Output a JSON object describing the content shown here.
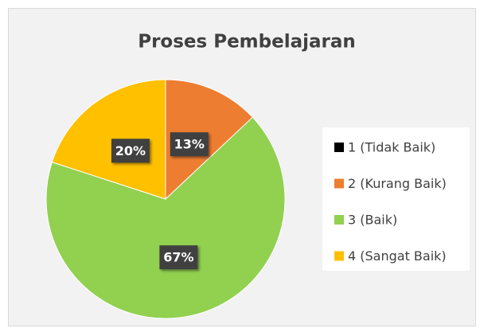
{
  "chart_data": {
    "type": "pie",
    "title": "Proses Pembelajaran",
    "categories": [
      "1 (Tidak Baik)",
      "2 (Kurang Baik)",
      "3 (Baik)",
      "4 (Sangat Baik)"
    ],
    "values": [
      0,
      13,
      67,
      20
    ],
    "value_labels": [
      null,
      "13%",
      "67%",
      "20%"
    ],
    "colors": [
      "#000000",
      "#ED7D31",
      "#92D050",
      "#FFC000"
    ],
    "legend": "right"
  }
}
